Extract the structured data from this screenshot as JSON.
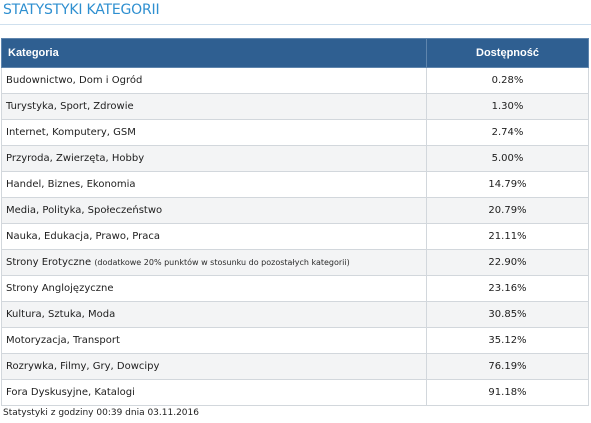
{
  "header": {
    "title": "STATYSTYKI KATEGORII"
  },
  "table": {
    "columns": {
      "category": "Kategoria",
      "availability": "Dostępność"
    },
    "rows": [
      {
        "category": "Budownictwo, Dom i Ogród",
        "note": "",
        "availability": "0.28%"
      },
      {
        "category": "Turystyka, Sport, Zdrowie",
        "note": "",
        "availability": "1.30%"
      },
      {
        "category": "Internet, Komputery, GSM",
        "note": "",
        "availability": "2.74%"
      },
      {
        "category": "Przyroda, Zwierzęta, Hobby",
        "note": "",
        "availability": "5.00%"
      },
      {
        "category": "Handel, Biznes, Ekonomia",
        "note": "",
        "availability": "14.79%"
      },
      {
        "category": "Media, Polityka, Społeczeństwo",
        "note": "",
        "availability": "20.79%"
      },
      {
        "category": "Nauka, Edukacja, Prawo, Praca",
        "note": "",
        "availability": "21.11%"
      },
      {
        "category": "Strony Erotyczne",
        "note": "(dodatkowe 20% punktów w stosunku do pozostałych kategorii)",
        "availability": "22.90%"
      },
      {
        "category": "Strony Anglojęzyczne",
        "note": "",
        "availability": "23.16%"
      },
      {
        "category": "Kultura, Sztuka, Moda",
        "note": "",
        "availability": "30.85%"
      },
      {
        "category": "Motoryzacja, Transport",
        "note": "",
        "availability": "35.12%"
      },
      {
        "category": "Rozrywka, Filmy, Gry, Dowcipy",
        "note": "",
        "availability": "76.19%"
      },
      {
        "category": "Fora Dyskusyjne, Katalogi",
        "note": "",
        "availability": "91.18%"
      }
    ]
  },
  "footer": {
    "timestamp": "Statystyki z godziny 00:39 dnia 03.11.2016"
  }
}
